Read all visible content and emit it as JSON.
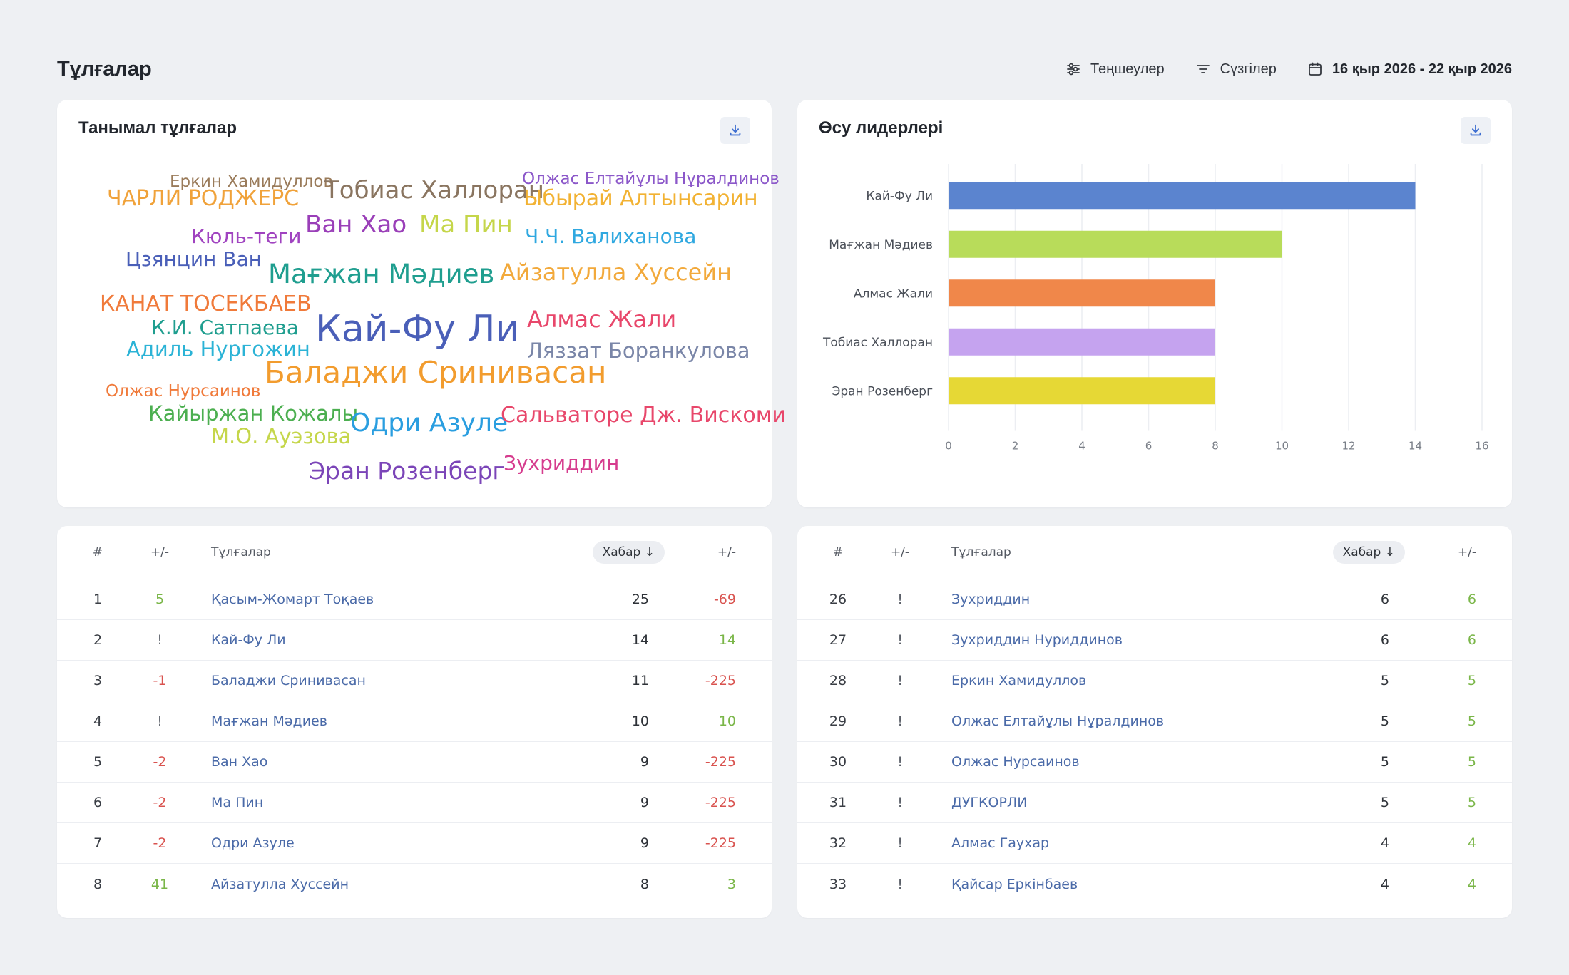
{
  "header": {
    "title": "Тұлғалар",
    "settings_label": "Теңшеулер",
    "filters_label": "Сүзгілер",
    "date_range": "16 қыр 2026 - 22 қыр 2026"
  },
  "cloud_card": {
    "title": "Танымал тұлғалар",
    "words": [
      {
        "text": "Еркин Хамидуллов",
        "color": "#9a7b5a"
      },
      {
        "text": "ЧАРЛИ РОДЖЕРС",
        "color": "#f0a23a"
      },
      {
        "text": "Тобиас Халлоран",
        "color": "#8a7560"
      },
      {
        "text": "Олжас Елтайұлы Нұралдинов",
        "color": "#8b57c9"
      },
      {
        "text": "Ыбырай Алтынсарин",
        "color": "#f2b233"
      },
      {
        "text": "Ван Хао",
        "color": "#9a3fb8"
      },
      {
        "text": "Ма Пин",
        "color": "#c5d64a"
      },
      {
        "text": "Кюль-теги",
        "color": "#a043c0"
      },
      {
        "text": "Ч.Ч. Валиханова",
        "color": "#2fa8e0"
      },
      {
        "text": "Цзянцин Ван",
        "color": "#4a5fb8"
      },
      {
        "text": "Мағжан Мәдиев",
        "color": "#1f9e8f"
      },
      {
        "text": "Айзатулла Хуссейн",
        "color": "#f2a93b"
      },
      {
        "text": "КАНАТ ТОСЕКБАЕВ",
        "color": "#f07a3a"
      },
      {
        "text": "К.И. Сатпаева",
        "color": "#1f9e8f"
      },
      {
        "text": "Кай-Фу Ли",
        "color": "#4a5fb8"
      },
      {
        "text": "Алмас Жали",
        "color": "#e8476b"
      },
      {
        "text": "Адиль Нургожин",
        "color": "#2bb3d6"
      },
      {
        "text": "Ляззат Боранкулова",
        "color": "#7a86a8"
      },
      {
        "text": "Баладжи Сринивасан",
        "color": "#f29c2e"
      },
      {
        "text": "Олжас Нурсаинов",
        "color": "#f07a3a"
      },
      {
        "text": "Кайыржан Кожалы",
        "color": "#4caf50"
      },
      {
        "text": "Одри Азуле",
        "color": "#2a9ee0"
      },
      {
        "text": "Сальваторе Дж. Вискоми",
        "color": "#e8476b"
      },
      {
        "text": "М.О. Ауэзова",
        "color": "#c5d64a"
      },
      {
        "text": "Эран Розенберг",
        "color": "#7b45b8"
      },
      {
        "text": "Зухриддин",
        "color": "#d63c8e"
      }
    ]
  },
  "bar_card": {
    "title": "Өсу лидерлері"
  },
  "chart_data": {
    "type": "bar",
    "orientation": "horizontal",
    "title": "Өсу лидерлері",
    "categories": [
      "Кай-Фу Ли",
      "Мағжан Мәдиев",
      "Алмас Жали",
      "Тобиас Халлоран",
      "Эран Розенберг"
    ],
    "values": [
      14,
      10,
      8,
      8,
      8
    ],
    "colors": [
      "#5b84cf",
      "#b8dc5a",
      "#f0874a",
      "#c5a3ef",
      "#e6d835"
    ],
    "xlim": [
      0,
      16
    ],
    "xticks": [
      0,
      2,
      4,
      6,
      8,
      10,
      12,
      14,
      16
    ],
    "grid": true
  },
  "table_headers": {
    "num": "#",
    "change": "+/-",
    "name": "Тұлғалар",
    "messages": "Хабар ↓",
    "delta": "+/-"
  },
  "table_left": [
    {
      "num": "1",
      "change": "5",
      "change_type": "pos",
      "name": "Қасым-Жомарт Тоқаев",
      "messages": "25",
      "delta": "-69",
      "delta_type": "neg"
    },
    {
      "num": "2",
      "change": "!",
      "change_type": "neu",
      "name": "Кай-Фу Ли",
      "messages": "14",
      "delta": "14",
      "delta_type": "pos"
    },
    {
      "num": "3",
      "change": "-1",
      "change_type": "neg",
      "name": "Баладжи Сринивасан",
      "messages": "11",
      "delta": "-225",
      "delta_type": "neg"
    },
    {
      "num": "4",
      "change": "!",
      "change_type": "neu",
      "name": "Мағжан Мәдиев",
      "messages": "10",
      "delta": "10",
      "delta_type": "pos"
    },
    {
      "num": "5",
      "change": "-2",
      "change_type": "neg",
      "name": "Ван Хао",
      "messages": "9",
      "delta": "-225",
      "delta_type": "neg"
    },
    {
      "num": "6",
      "change": "-2",
      "change_type": "neg",
      "name": "Ма Пин",
      "messages": "9",
      "delta": "-225",
      "delta_type": "neg"
    },
    {
      "num": "7",
      "change": "-2",
      "change_type": "neg",
      "name": "Одри Азуле",
      "messages": "9",
      "delta": "-225",
      "delta_type": "neg"
    },
    {
      "num": "8",
      "change": "41",
      "change_type": "pos",
      "name": "Айзатулла Хуссейн",
      "messages": "8",
      "delta": "3",
      "delta_type": "pos"
    }
  ],
  "table_right": [
    {
      "num": "26",
      "change": "!",
      "change_type": "neu",
      "name": "Зухриддин",
      "messages": "6",
      "delta": "6",
      "delta_type": "pos"
    },
    {
      "num": "27",
      "change": "!",
      "change_type": "neu",
      "name": "Зухриддин Нуриддинов",
      "messages": "6",
      "delta": "6",
      "delta_type": "pos"
    },
    {
      "num": "28",
      "change": "!",
      "change_type": "neu",
      "name": "Еркин Хамидуллов",
      "messages": "5",
      "delta": "5",
      "delta_type": "pos"
    },
    {
      "num": "29",
      "change": "!",
      "change_type": "neu",
      "name": "Олжас Елтайұлы Нұралдинов",
      "messages": "5",
      "delta": "5",
      "delta_type": "pos"
    },
    {
      "num": "30",
      "change": "!",
      "change_type": "neu",
      "name": "Олжас Нурсаинов",
      "messages": "5",
      "delta": "5",
      "delta_type": "pos"
    },
    {
      "num": "31",
      "change": "!",
      "change_type": "neu",
      "name": "ДУГКОРЛИ",
      "messages": "5",
      "delta": "5",
      "delta_type": "pos"
    },
    {
      "num": "32",
      "change": "!",
      "change_type": "neu",
      "name": "Алмас Гаухар",
      "messages": "4",
      "delta": "4",
      "delta_type": "pos"
    },
    {
      "num": "33",
      "change": "!",
      "change_type": "neu",
      "name": "Қайсар Еркінбаев",
      "messages": "4",
      "delta": "4",
      "delta_type": "pos"
    }
  ]
}
